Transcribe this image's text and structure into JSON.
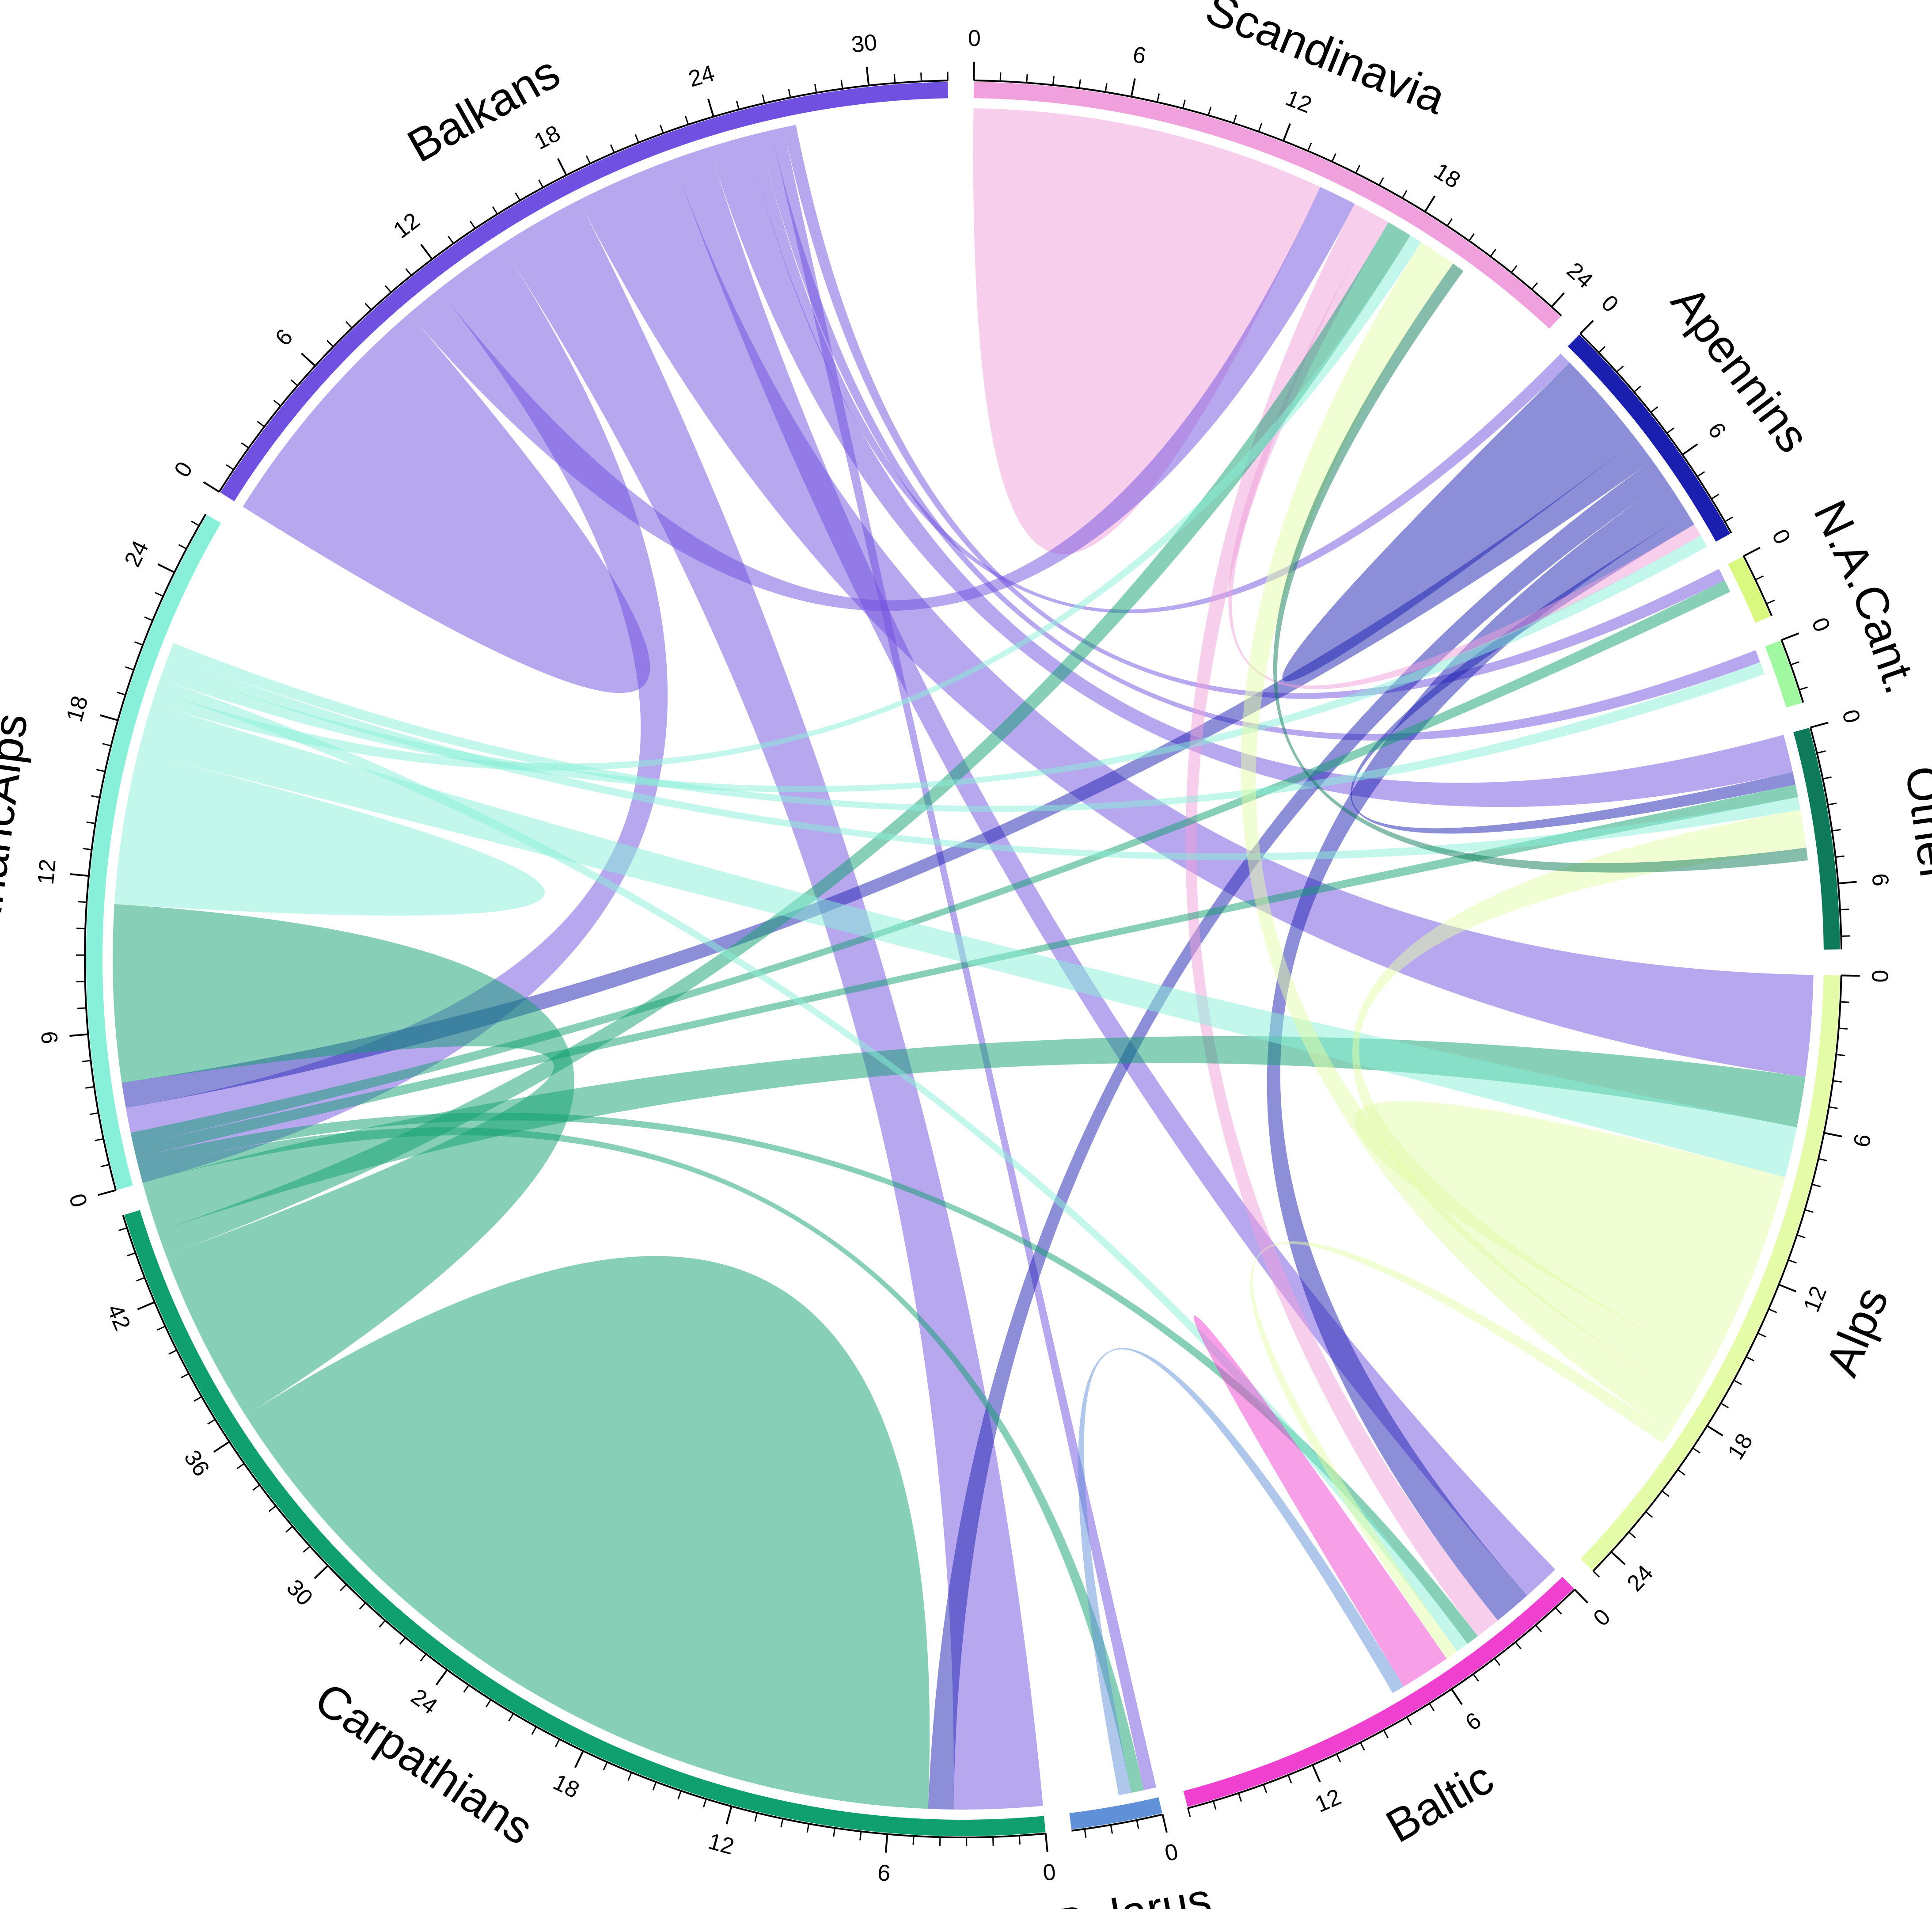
{
  "chart_data": {
    "type": "chord",
    "title": "",
    "tick_step": 6,
    "sectors": [
      {
        "name": "Scandinavia",
        "total": 24.5,
        "color": "#f0a0dc"
      },
      {
        "name": "Apennins",
        "total": 9.5,
        "color": "#1a1fb0"
      },
      {
        "name": "N.A.",
        "total": 2.5,
        "color": "#d8f880"
      },
      {
        "name": "Cant.",
        "total": 2.5,
        "color": "#a0f8a0"
      },
      {
        "name": "Other",
        "total": 8.5,
        "color": "#0e7a5a"
      },
      {
        "name": "Alps",
        "total": 25,
        "color": "#e4fca8"
      },
      {
        "name": "Baltic",
        "total": 17,
        "color": "#f040d0"
      },
      {
        "name": "Belarus",
        "total": 3.5,
        "color": "#6090d8"
      },
      {
        "name": "Carpathians",
        "total": 45.5,
        "color": "#10a070"
      },
      {
        "name": "DinaricAlps",
        "total": 26.5,
        "color": "#88f0d8"
      },
      {
        "name": "Balkans",
        "total": 33,
        "color": "#7050e0"
      }
    ],
    "links": [
      {
        "from": "Scandinavia",
        "to": "Scandinavia",
        "value": 7
      },
      {
        "from": "Balkans",
        "to": "Balkans",
        "value": 5
      },
      {
        "from": "Balkans",
        "to": "Scandinavia",
        "value": 1.5
      },
      {
        "from": "Balkans",
        "to": "DinaricAlps",
        "value": 3
      },
      {
        "from": "Balkans",
        "to": "Carpathians",
        "value": 3.5
      },
      {
        "from": "Balkans",
        "to": "Alps",
        "value": 4
      },
      {
        "from": "Balkans",
        "to": "Baltic",
        "value": 1.5
      },
      {
        "from": "Balkans",
        "to": "Other",
        "value": 1.5
      },
      {
        "from": "Balkans",
        "to": "Apennins",
        "value": 0.5
      },
      {
        "from": "Balkans",
        "to": "Cant.",
        "value": 0.5
      },
      {
        "from": "Balkans",
        "to": "Belarus",
        "value": 0.5
      },
      {
        "from": "Balkans",
        "to": "N.A.",
        "value": 0.5
      },
      {
        "from": "Apennins",
        "to": "Apennins",
        "value": 2
      },
      {
        "from": "Apennins",
        "to": "DinaricAlps",
        "value": 1
      },
      {
        "from": "Apennins",
        "to": "Carpathians",
        "value": 1
      },
      {
        "from": "Apennins",
        "to": "Baltic",
        "value": 1.5
      },
      {
        "from": "Apennins",
        "to": "Other",
        "value": 0.5
      },
      {
        "from": "Scandinavia",
        "to": "Baltic",
        "value": 1
      },
      {
        "from": "Scandinavia",
        "to": "Apennins",
        "value": 0.5
      },
      {
        "from": "Carpathians",
        "to": "Carpathians",
        "value": 16
      },
      {
        "from": "Carpathians",
        "to": "DinaricAlps",
        "value": 7
      },
      {
        "from": "Carpathians",
        "to": "Scandinavia",
        "value": 1
      },
      {
        "from": "Carpathians",
        "to": "Alps",
        "value": 2
      },
      {
        "from": "Carpathians",
        "to": "Belarus",
        "value": 0.5
      },
      {
        "from": "Carpathians",
        "to": "Baltic",
        "value": 0.5
      },
      {
        "from": "Carpathians",
        "to": "Other",
        "value": 0.5
      },
      {
        "from": "Carpathians",
        "to": "N.A.",
        "value": 0.5
      },
      {
        "from": "DinaricAlps",
        "to": "DinaricAlps",
        "value": 3
      },
      {
        "from": "DinaricAlps",
        "to": "Alps",
        "value": 2
      },
      {
        "from": "DinaricAlps",
        "to": "Scandinavia",
        "value": 0.5
      },
      {
        "from": "DinaricAlps",
        "to": "Baltic",
        "value": 0.5
      },
      {
        "from": "DinaricAlps",
        "to": "Apennins",
        "value": 0.5
      },
      {
        "from": "DinaricAlps",
        "to": "Other",
        "value": 0.5
      },
      {
        "from": "DinaricAlps",
        "to": "Cant.",
        "value": 0.5
      },
      {
        "from": "Alps",
        "to": "Alps",
        "value": 4
      },
      {
        "from": "Alps",
        "to": "Other",
        "value": 1.5
      },
      {
        "from": "Alps",
        "to": "Scandinavia",
        "value": 1.5
      },
      {
        "from": "Alps",
        "to": "Baltic",
        "value": 0.5
      },
      {
        "from": "Baltic",
        "to": "Baltic",
        "value": 1
      },
      {
        "from": "Belarus",
        "to": "Baltic",
        "value": 0.5
      },
      {
        "from": "Other",
        "to": "Scandinavia",
        "value": 0.5
      }
    ]
  }
}
